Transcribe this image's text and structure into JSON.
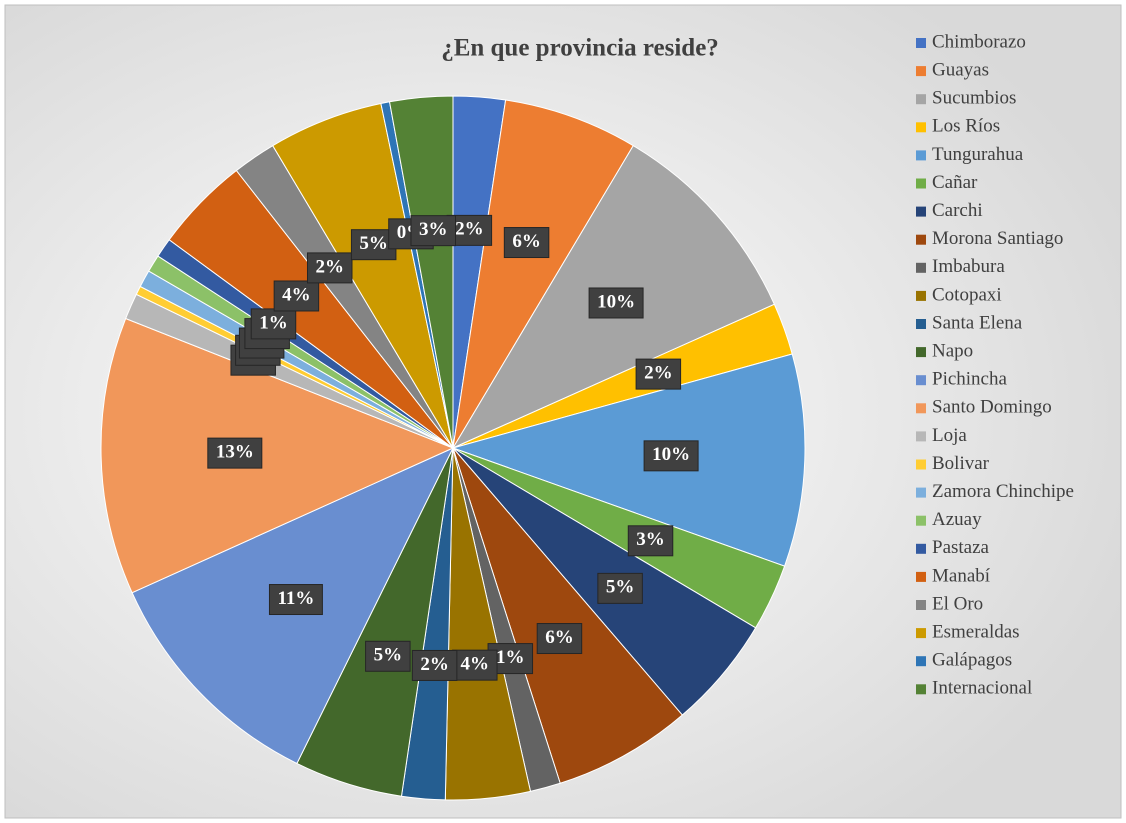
{
  "chart_data": {
    "type": "pie",
    "title": "¿En que provincia reside?",
    "categories": [
      "Chimborazo",
      "Guayas",
      "Sucumbios",
      "Los Ríos",
      "Tungurahua",
      "Cañar",
      "Carchi",
      "Morona Santiago",
      "Imbabura",
      "Cotopaxi",
      "Santa Elena",
      "Napo",
      "Pichincha",
      "Santo Domingo",
      "Loja",
      "Bolivar",
      "Zamora Chinchipe",
      "Azuay",
      "Pastaza",
      "Manabí",
      "El Oro",
      "Esmeraldas",
      "Galápagos",
      "Internacional"
    ],
    "values": [
      2.4,
      6.2,
      9.8,
      2.4,
      9.8,
      3.1,
      5.2,
      6.4,
      1.4,
      3.9,
      2.0,
      5.0,
      11.0,
      12.8,
      1.2,
      0.4,
      0.8,
      0.8,
      0.9,
      4.4,
      2.0,
      5.3,
      0.4,
      2.9
    ],
    "value_labels": [
      "2%",
      "6%",
      "10%",
      "2%",
      "10%",
      "3%",
      "5%",
      "6%",
      "1%",
      "4%",
      "2%",
      "5%",
      "11%",
      "13%",
      "1%",
      "0%",
      "1%",
      "1%",
      "1%",
      "4%",
      "2%",
      "5%",
      "0%",
      "3%"
    ],
    "colors": [
      "#4472c4",
      "#ed7d31",
      "#a5a5a5",
      "#ffc000",
      "#5b9bd5",
      "#70ad47",
      "#264478",
      "#9e480e",
      "#636363",
      "#997300",
      "#255e91",
      "#43682b",
      "#698ed0",
      "#f1975a",
      "#b7b7b7",
      "#ffcd33",
      "#7cafdd",
      "#8cc168",
      "#335aa1",
      "#d26012",
      "#848484",
      "#cc9a00",
      "#2e75b6",
      "#548235"
    ],
    "legend": "right"
  }
}
